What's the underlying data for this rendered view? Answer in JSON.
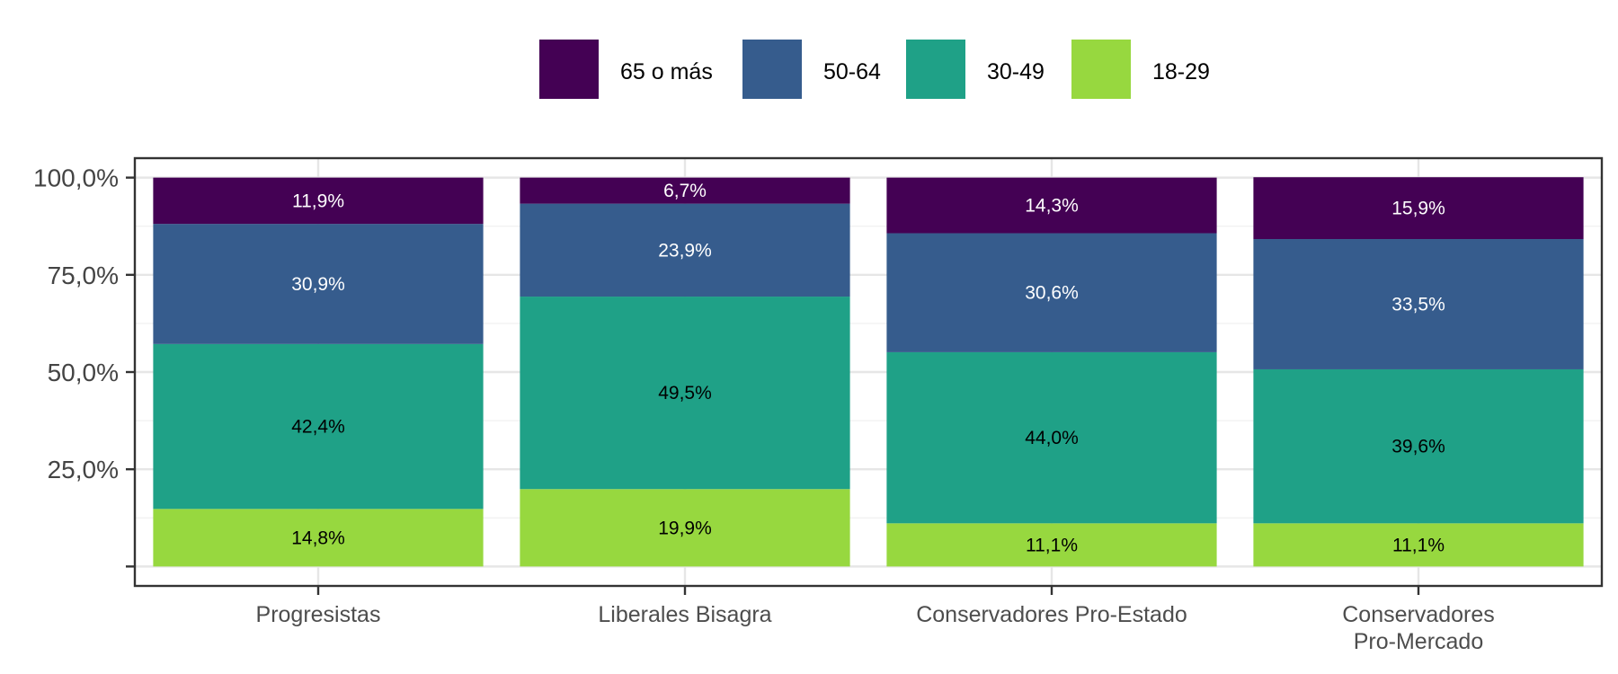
{
  "chart_data": {
    "type": "bar",
    "stacked": true,
    "categories": [
      "Progresistas",
      "Liberales Bisagra",
      "Conservadores Pro-Estado",
      "Conservadores\nPro-Mercado"
    ],
    "series": [
      {
        "name": "18-29",
        "color": "#97d83f",
        "values": [
          14.8,
          19.9,
          11.1,
          11.1
        ],
        "labels": [
          "14,8%",
          "19,9%",
          "11,1%",
          "11,1%"
        ],
        "label_color": "#000000"
      },
      {
        "name": "30-49",
        "color": "#1fa187",
        "values": [
          42.4,
          49.5,
          44.0,
          39.6
        ],
        "labels": [
          "42,4%",
          "49,5%",
          "44,0%",
          "39,6%"
        ],
        "label_color": "#000000"
      },
      {
        "name": "50-64",
        "color": "#365c8d",
        "values": [
          30.9,
          23.9,
          30.6,
          33.5
        ],
        "labels": [
          "30,9%",
          "23,9%",
          "30,6%",
          "33,5%"
        ],
        "label_color": "#ffffff"
      },
      {
        "name": "65 o más",
        "color": "#440154",
        "values": [
          11.9,
          6.7,
          14.3,
          15.9
        ],
        "labels": [
          "11,9%",
          "6,7%",
          "14,3%",
          "15,9%"
        ],
        "label_color": "#ffffff"
      }
    ],
    "legend_order": [
      "65 o más",
      "50-64",
      "30-49",
      "18-29"
    ],
    "yticks": [
      0,
      25,
      50,
      75,
      100
    ],
    "ytick_labels": [
      "",
      "25,0%",
      "50,0%",
      "75,0%",
      "100,0%"
    ],
    "ylim": [
      -5,
      105
    ],
    "xlabel": "",
    "ylabel": "",
    "title": "",
    "grid": true,
    "legend_position": "top"
  }
}
